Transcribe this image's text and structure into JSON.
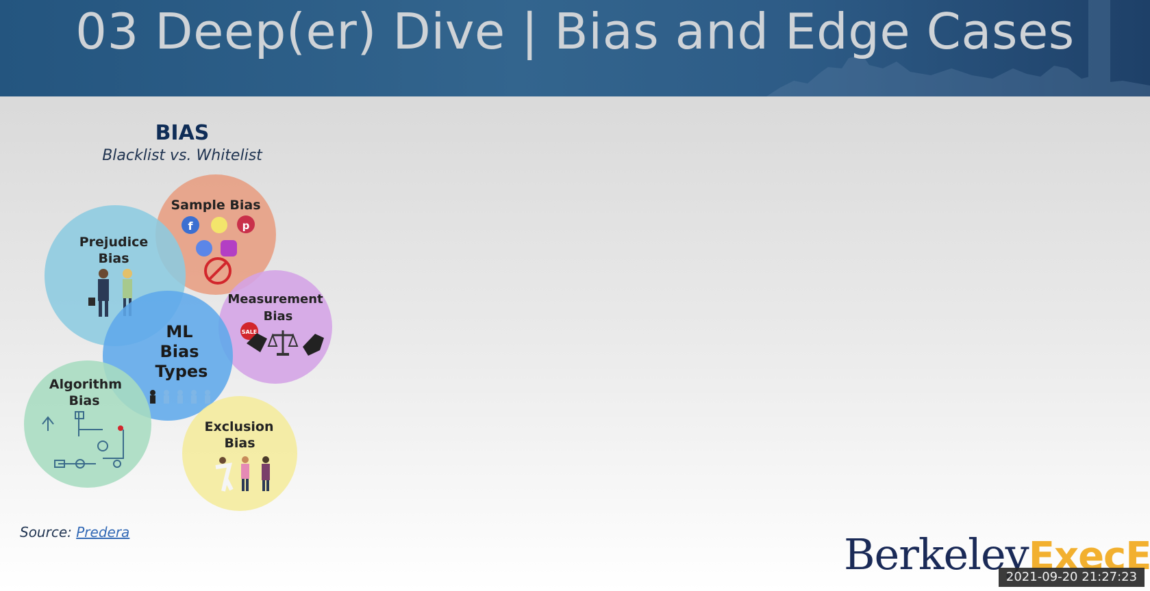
{
  "header": {
    "title": "03 Deep(er) Dive | Bias and Edge Cases"
  },
  "bias": {
    "heading": "BIAS",
    "subtitle": "Blacklist vs. Whitelist"
  },
  "diagram": {
    "circles": [
      {
        "id": "sample",
        "line1": "Sample Bias",
        "line2": "",
        "color": "#e79b7e"
      },
      {
        "id": "prejudice",
        "line1": "Prejudice",
        "line2": "Bias",
        "color": "#8ccbe0"
      },
      {
        "id": "measurement",
        "line1": "Measurement",
        "line2": "Bias",
        "color": "#d4a3e6"
      },
      {
        "id": "ml",
        "line1": "ML",
        "line2": "Bias",
        "line3": "Types",
        "color": "#5fa9ea"
      },
      {
        "id": "algorithm",
        "line1": "Algorithm",
        "line2": "Bias",
        "color": "#a7dcc0"
      },
      {
        "id": "exclusion",
        "line1": "Exclusion",
        "line2": "Bias",
        "color": "#f4ec9f"
      }
    ],
    "sale_tag": "SALE"
  },
  "source": {
    "prefix": "Source:",
    "link": "Predera"
  },
  "logo": {
    "part1": "Berkeley",
    "part2": "ExecEd"
  },
  "timestamp": "2021-09-20 21:27:23"
}
